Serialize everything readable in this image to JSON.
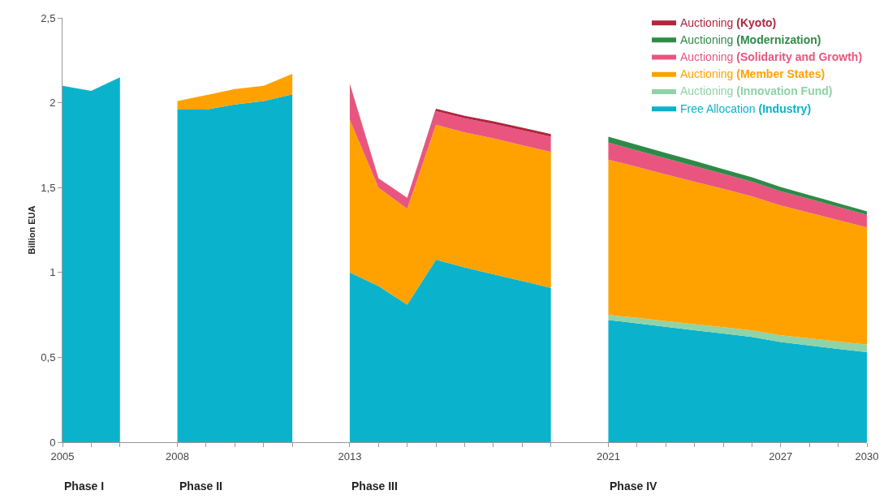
{
  "chart_data": {
    "type": "area",
    "stacked": true,
    "ylabel": "Billion EUA",
    "annotations": [
      "Phase I",
      "Phase II",
      "Phase III",
      "Phase IV"
    ],
    "categories": [
      "2005",
      null,
      null,
      null,
      "2008",
      null,
      null,
      null,
      null,
      null,
      "2013",
      null,
      null,
      null,
      null,
      null,
      null,
      null,
      null,
      "2021",
      null,
      null,
      null,
      null,
      null,
      "2027",
      null,
      null,
      "2030"
    ],
    "ylim": [
      0,
      2.5
    ],
    "yticks": [
      0,
      {
        "value": 0.5,
        "label": "0,5"
      },
      1,
      {
        "value": 1.5,
        "label": "1,5"
      },
      2,
      {
        "value": 2.5,
        "label": "2,5"
      }
    ],
    "legend": "top right",
    "series": [
      {
        "name": "Free Allocation (Industry)",
        "color": "#0ab3cb",
        "values": [
          2.1,
          2.07,
          2.15,
          null,
          1.96,
          1.96,
          1.99,
          2.01,
          2.05,
          null,
          1.0,
          0.92,
          0.81,
          1.075,
          1.03,
          0.99,
          0.95,
          0.91,
          null,
          0.72,
          0.7,
          0.68,
          0.66,
          0.64,
          0.62,
          0.59,
          0.57,
          0.55,
          0.53
        ]
      },
      {
        "name": "Auctioning (Innovation Fund)",
        "color": "#8fd3a8",
        "values": [
          null,
          null,
          null,
          null,
          null,
          null,
          null,
          null,
          null,
          null,
          null,
          null,
          null,
          null,
          null,
          null,
          null,
          null,
          null,
          0.03,
          0.032,
          0.033,
          0.035,
          0.037,
          0.038,
          0.04,
          0.042,
          0.043,
          0.045
        ]
      },
      {
        "name": "Auctioning (Member States)",
        "color": "#ffa200",
        "values": [
          null,
          null,
          null,
          null,
          0.05,
          0.085,
          0.09,
          0.09,
          0.12,
          null,
          0.9,
          0.58,
          0.565,
          0.795,
          0.795,
          0.8,
          0.8,
          0.8,
          null,
          0.915,
          0.89,
          0.865,
          0.84,
          0.815,
          0.79,
          0.765,
          0.74,
          0.715,
          0.69
        ]
      },
      {
        "name": "Auctioning (Solidarity and Growth)",
        "color": "#e9557f",
        "values": [
          null,
          null,
          null,
          null,
          null,
          null,
          null,
          null,
          null,
          null,
          0.2,
          0.055,
          0.065,
          0.08,
          0.083,
          0.085,
          0.088,
          0.09,
          null,
          0.1,
          0.097,
          0.094,
          0.092,
          0.089,
          0.086,
          0.083,
          0.081,
          0.078,
          0.075
        ]
      },
      {
        "name": "Auctioning (Modernization)",
        "color": "#2e8b47",
        "values": [
          null,
          null,
          null,
          null,
          null,
          null,
          null,
          null,
          null,
          null,
          null,
          null,
          null,
          null,
          null,
          null,
          null,
          null,
          null,
          0.035,
          0.033,
          0.032,
          0.03,
          0.028,
          0.027,
          0.025,
          0.023,
          0.022,
          0.02
        ]
      },
      {
        "name": "Auctioning (Kyoto)",
        "color": "#b0263f",
        "values": [
          null,
          null,
          null,
          null,
          null,
          null,
          null,
          null,
          null,
          null,
          0.01,
          0,
          0,
          0.015,
          0.015,
          0.015,
          0.015,
          0.015,
          null,
          null,
          null,
          null,
          null,
          null,
          null,
          null,
          null,
          null,
          null
        ]
      }
    ]
  }
}
